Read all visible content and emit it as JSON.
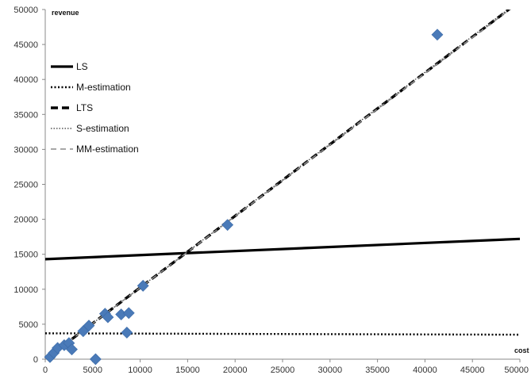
{
  "chart_data": {
    "type": "scatter",
    "xlabel": "cost",
    "ylabel": "revenue",
    "xlim": [
      0,
      50000
    ],
    "ylim": [
      0,
      50000
    ],
    "x_ticks": [
      "0",
      "5000",
      "10000",
      "15000",
      "20000",
      "25000",
      "30000",
      "35000",
      "40000",
      "45000",
      "50000"
    ],
    "y_ticks": [
      "0",
      "5000",
      "10000",
      "15000",
      "20000",
      "25000",
      "30000",
      "35000",
      "40000",
      "45000",
      "50000"
    ],
    "grid": false,
    "legend_position": "top-left",
    "marker_color": "#4a7ab8",
    "points": [
      {
        "x": 500,
        "y": 300
      },
      {
        "x": 900,
        "y": 900
      },
      {
        "x": 1300,
        "y": 1600
      },
      {
        "x": 2000,
        "y": 2000
      },
      {
        "x": 2500,
        "y": 2300
      },
      {
        "x": 2800,
        "y": 1400
      },
      {
        "x": 4000,
        "y": 4000
      },
      {
        "x": 4600,
        "y": 4800
      },
      {
        "x": 5300,
        "y": 0
      },
      {
        "x": 6300,
        "y": 6500
      },
      {
        "x": 6600,
        "y": 6000
      },
      {
        "x": 8000,
        "y": 6400
      },
      {
        "x": 8600,
        "y": 3800
      },
      {
        "x": 8800,
        "y": 6600
      },
      {
        "x": 10300,
        "y": 10500
      },
      {
        "x": 19200,
        "y": 19200
      },
      {
        "x": 41300,
        "y": 46400
      }
    ],
    "series": [
      {
        "name": "LS",
        "style": "solid",
        "x": [
          0,
          50000
        ],
        "y": [
          14300,
          17200
        ]
      },
      {
        "name": "M-estimation",
        "style": "dotted",
        "x": [
          0,
          50000
        ],
        "y": [
          3700,
          3500
        ]
      },
      {
        "name": "LTS",
        "style": "dashed",
        "x": [
          0,
          50000
        ],
        "y": [
          0,
          51200
        ]
      },
      {
        "name": "S-estimation",
        "style": "fine-dotted",
        "x": [
          0,
          50000
        ],
        "y": [
          0,
          51300
        ]
      },
      {
        "name": "MM-estimation",
        "style": "light-dashed",
        "x": [
          0,
          50000
        ],
        "y": [
          0,
          51100
        ]
      }
    ]
  }
}
